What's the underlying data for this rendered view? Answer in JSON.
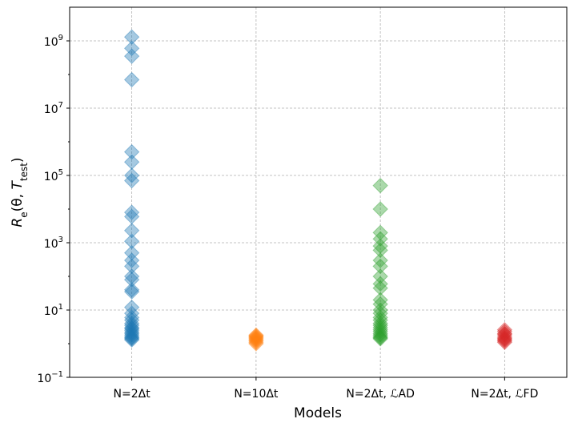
{
  "chart_data": {
    "type": "strip",
    "log_y": true,
    "grid": true,
    "marker": "diamond",
    "xlabel": "Models",
    "ylabel": [
      "R",
      "e",
      "(θ, ",
      "T",
      "test",
      ")"
    ],
    "categories": [
      "N=2Δt",
      "N=10Δt",
      "N=2Δt, ℒAD",
      "N=2Δt, ℒFD"
    ],
    "ylim": [
      0.1,
      10000000000
    ],
    "yticks": [
      {
        "value": 0.1,
        "label": "10",
        "sup": "−1"
      },
      {
        "value": 10,
        "label": "10",
        "sup": "1"
      },
      {
        "value": 1000,
        "label": "10",
        "sup": "3"
      },
      {
        "value": 100000,
        "label": "10",
        "sup": "5"
      },
      {
        "value": 10000000,
        "label": "10",
        "sup": "7"
      },
      {
        "value": 1000000000,
        "label": "10",
        "sup": "9"
      }
    ],
    "series": [
      {
        "color": "#1f77b4",
        "values": [
          1300000000,
          600000000,
          350000000,
          70000000,
          500000,
          250000,
          100000,
          70000,
          8000,
          6000,
          2300,
          1100,
          500,
          300,
          200,
          100,
          80,
          40,
          35,
          12,
          8,
          6,
          5,
          4,
          3.5,
          3,
          2.8,
          2.5,
          2.2,
          2,
          1.8,
          1.6,
          1.5,
          1.4,
          1.3
        ]
      },
      {
        "color": "#ff7f0e",
        "values": [
          1.0,
          1.1,
          1.2,
          1.3,
          1.4,
          1.5,
          1.6,
          1.7,
          1.8
        ]
      },
      {
        "color": "#2ca02c",
        "values": [
          50000,
          10000,
          2000,
          1300,
          800,
          600,
          300,
          200,
          100,
          60,
          45,
          20,
          15,
          10,
          8,
          6,
          5,
          4,
          3.5,
          3,
          2.6,
          2.3,
          2,
          1.8,
          1.6,
          1.5,
          1.4
        ]
      },
      {
        "color": "#d62728",
        "values": [
          1.1,
          1.2,
          1.3,
          1.4,
          1.5,
          1.7,
          1.9,
          2,
          2.3,
          2.6
        ]
      }
    ]
  }
}
